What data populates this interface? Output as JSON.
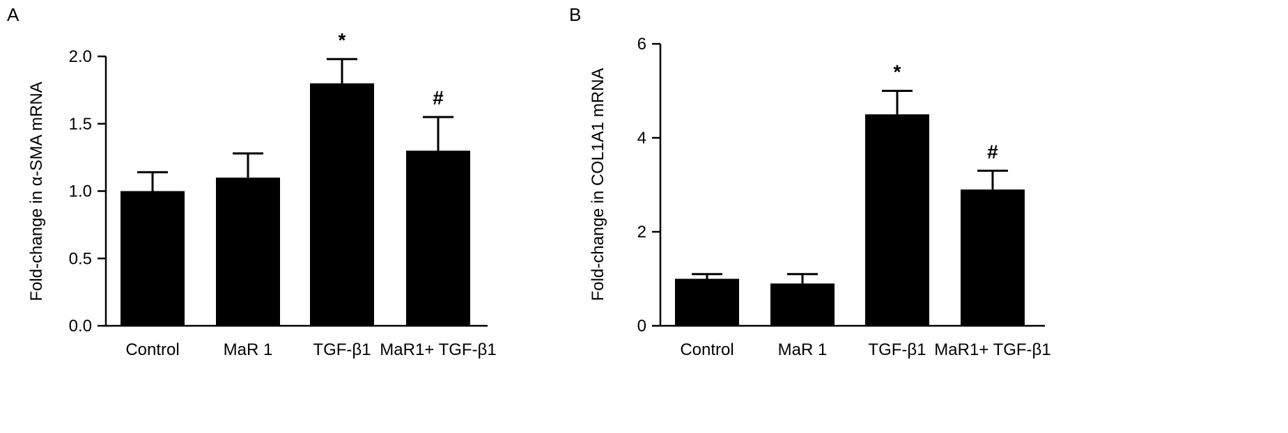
{
  "chart_data": [
    {
      "panel_label": "A",
      "type": "bar",
      "categories": [
        "Control",
        "MaR 1",
        "TGF-β1",
        "MaR1+ TGF-β1"
      ],
      "values": [
        1.0,
        1.1,
        1.8,
        1.3
      ],
      "error": [
        0.14,
        0.18,
        0.18,
        0.25
      ],
      "annotations": [
        "",
        "",
        "*",
        "#"
      ],
      "ylabel": "Fold-change in α-SMA mRNA",
      "xlabel": "",
      "ylim": [
        0,
        2.0
      ],
      "yticks": [
        "0.0",
        "0.5",
        "1.0",
        "1.5",
        "2.0"
      ],
      "bar_color": "#000000"
    },
    {
      "panel_label": "B",
      "type": "bar",
      "categories": [
        "Control",
        "MaR 1",
        "TGF-β1",
        "MaR1+ TGF-β1"
      ],
      "values": [
        1.0,
        0.9,
        4.5,
        2.9
      ],
      "error": [
        0.1,
        0.2,
        0.5,
        0.4
      ],
      "annotations": [
        "",
        "",
        "*",
        "#"
      ],
      "ylabel": "Fold-change in COL1A1 mRNA",
      "xlabel": "",
      "ylim": [
        0,
        6
      ],
      "yticks": [
        "0",
        "2",
        "4",
        "6"
      ],
      "bar_color": "#000000"
    }
  ]
}
